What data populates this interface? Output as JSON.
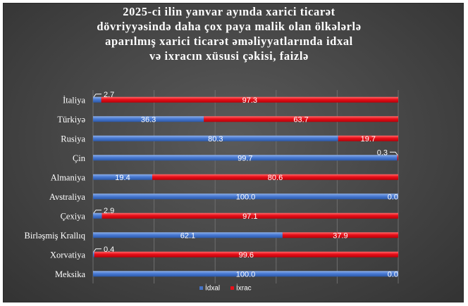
{
  "chart_data": {
    "type": "bar",
    "stacked": true,
    "orientation": "horizontal",
    "title_lines": [
      "2025-ci ilin yanvar ayında xarici ticarət",
      "dövriyyəsində daha çox paya malik olan ölkələrlə",
      "aparılmış xarici ticarət əməliyyatlarında idxal",
      "və ixracın xüsusi çəkisi, faizlə"
    ],
    "categories": [
      "İtaliya",
      "Türkiyə",
      "Rusiya",
      "Çin",
      "Almaniya",
      "Avstraliya",
      "Çexiya",
      "Birləşmiş Krallıq",
      "Xorvatiya",
      "Meksika"
    ],
    "series": [
      {
        "name": "İdxal",
        "color": "#4472c4",
        "values": [
          2.7,
          36.3,
          80.3,
          99.7,
          19.4,
          100.0,
          2.9,
          62.1,
          0.4,
          100.0
        ],
        "labels": [
          "2.7",
          "36.3",
          "80.3",
          "99.7",
          "19.4",
          "100.0",
          "2.9",
          "62.1",
          "0.4",
          "100.0"
        ]
      },
      {
        "name": "İxrac",
        "color": "#e8101a",
        "values": [
          97.3,
          63.7,
          19.7,
          0.3,
          80.6,
          0.0,
          97.1,
          37.9,
          99.6,
          0.0
        ],
        "labels": [
          "97.3",
          "63.7",
          "19.7",
          "0.3",
          "80.6",
          "0.0",
          "97.1",
          "37.9",
          "99.6",
          "0.0"
        ]
      }
    ],
    "xlim": [
      0,
      100
    ],
    "grid": true,
    "legend_position": "bottom"
  }
}
